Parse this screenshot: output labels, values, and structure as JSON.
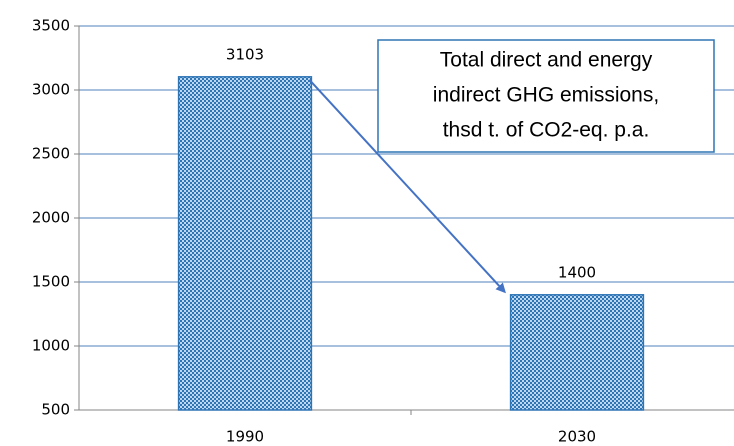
{
  "chart_data": {
    "type": "bar",
    "annotation": [
      "Total direct and energy",
      "indirect GHG emissions,",
      "thsd t. of CO2-eq. p.a."
    ],
    "categories": [
      "1990",
      "2030"
    ],
    "values": [
      3103,
      1400
    ],
    "color": "#2e75b6",
    "ylim": [
      500,
      3500
    ],
    "yticks": [
      500,
      1000,
      1500,
      2000,
      2500,
      3000,
      3500
    ],
    "grid": true
  }
}
